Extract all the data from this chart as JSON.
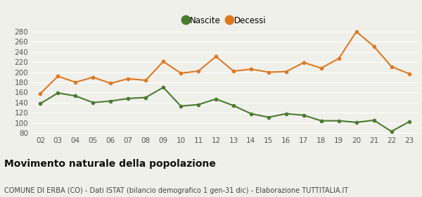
{
  "years": [
    "02",
    "03",
    "04",
    "05",
    "06",
    "07",
    "08",
    "09",
    "10",
    "11",
    "12",
    "13",
    "14",
    "15",
    "16",
    "17",
    "18",
    "19",
    "20",
    "21",
    "22",
    "23"
  ],
  "nascite": [
    138,
    159,
    153,
    140,
    143,
    148,
    150,
    170,
    133,
    136,
    147,
    134,
    118,
    111,
    118,
    115,
    104,
    104,
    101,
    105,
    83,
    102
  ],
  "decessi": [
    158,
    192,
    180,
    190,
    178,
    187,
    184,
    221,
    198,
    202,
    231,
    202,
    206,
    200,
    201,
    219,
    208,
    227,
    280,
    251,
    211,
    197
  ],
  "nascite_color": "#4a7c2f",
  "decessi_color": "#e07820",
  "background_color": "#f0f0eb",
  "grid_color": "#ffffff",
  "ylim": [
    78,
    288
  ],
  "yticks": [
    80,
    100,
    120,
    140,
    160,
    180,
    200,
    220,
    240,
    260,
    280
  ],
  "title": "Movimento naturale della popolazione",
  "subtitle": "COMUNE DI ERBA (CO) - Dati ISTAT (bilancio demografico 1 gen-31 dic) - Elaborazione TUTTITALIA.IT",
  "legend_labels": [
    "Nascite",
    "Decessi"
  ],
  "title_fontsize": 10,
  "subtitle_fontsize": 7,
  "tick_fontsize": 7.5,
  "legend_fontsize": 8.5,
  "marker_size": 4,
  "linewidth": 1.5
}
